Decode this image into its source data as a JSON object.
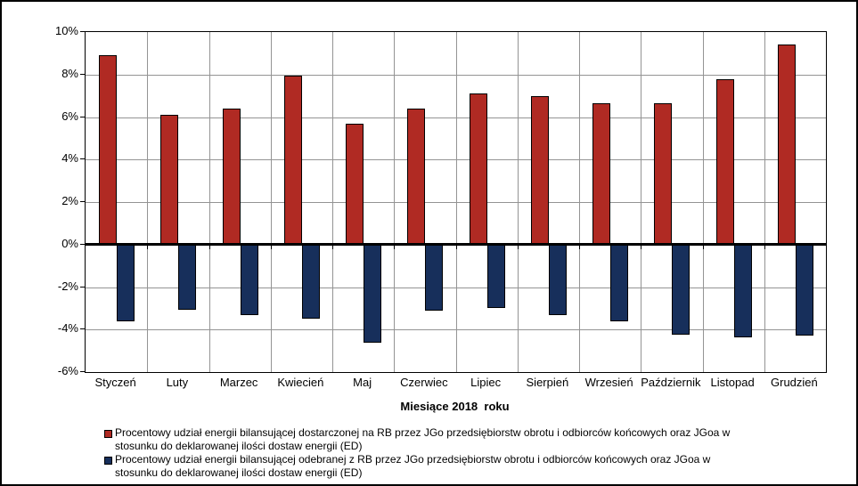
{
  "chart_data": {
    "type": "bar",
    "title": "",
    "xlabel": "Miesiące 2018  roku",
    "ylabel": "",
    "ylim": [
      -6,
      10
    ],
    "ytick_step": 2,
    "grid": true,
    "legend_position": "bottom-left",
    "categories": [
      "Styczeń",
      "Luty",
      "Marzec",
      "Kwiecień",
      "Maj",
      "Czerwiec",
      "Lipiec",
      "Sierpień",
      "Wrzesień",
      "Październik",
      "Listopad",
      "Grudzień"
    ],
    "yticks": [
      {
        "v": 10,
        "label": "10%"
      },
      {
        "v": 8,
        "label": "8%"
      },
      {
        "v": 6,
        "label": "6%"
      },
      {
        "v": 4,
        "label": "4%"
      },
      {
        "v": 2,
        "label": "2%"
      },
      {
        "v": 0,
        "label": "0%"
      },
      {
        "v": -2,
        "label": "-2%"
      },
      {
        "v": -4,
        "label": "-4%"
      },
      {
        "v": -6,
        "label": "-6%"
      }
    ],
    "series": [
      {
        "name_lines": [
          "Procentowy udział energii bilansującej dostarczonej na RB przez JGo przedsiębiorstw obrotu i odbiorców końcowych oraz JGoa w",
          "stosunku do deklarowanej ilości dostaw energii (ED)"
        ],
        "color": "#B02A23",
        "values": [
          8.9,
          6.1,
          6.4,
          7.95,
          5.7,
          6.4,
          7.1,
          7.0,
          6.65,
          6.65,
          7.8,
          9.4
        ]
      },
      {
        "name_lines": [
          "Procentowy udział energii bilansującej odebranej z RB przez JGo przedsiębiorstw obrotu i odbiorców końcowych oraz JGoa w",
          "stosunku do deklarowanej ilości dostaw energii (ED)"
        ],
        "color": "#172F5B",
        "values": [
          -3.6,
          -3.05,
          -3.3,
          -3.5,
          -4.6,
          -3.1,
          -3.0,
          -3.3,
          -3.6,
          -4.25,
          -4.35,
          -4.3
        ]
      }
    ],
    "colors": {
      "gridline": "#949494",
      "axis": "#000000",
      "background": "#FFFFFF"
    }
  }
}
